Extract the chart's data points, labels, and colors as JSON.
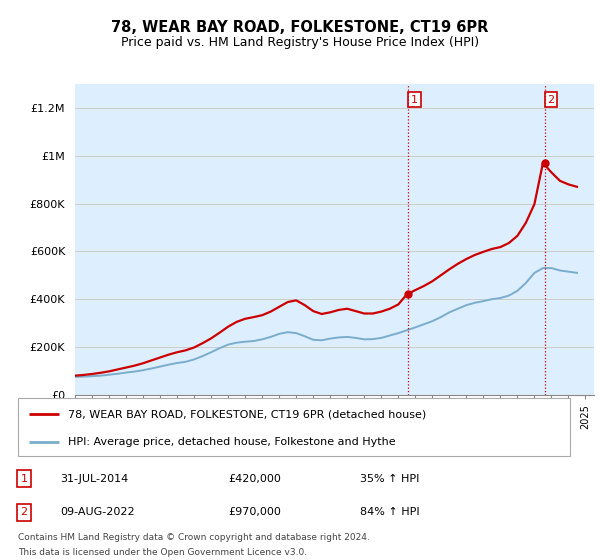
{
  "title": "78, WEAR BAY ROAD, FOLKESTONE, CT19 6PR",
  "subtitle": "Price paid vs. HM Land Registry's House Price Index (HPI)",
  "ylabel_ticks": [
    "£0",
    "£200K",
    "£400K",
    "£600K",
    "£800K",
    "£1M",
    "£1.2M"
  ],
  "ytick_values": [
    0,
    200000,
    400000,
    600000,
    800000,
    1000000,
    1200000
  ],
  "ylim": [
    0,
    1300000
  ],
  "xlim_start": 1995.0,
  "xlim_end": 2025.5,
  "red_line_color": "#cc0000",
  "blue_line_color": "#7aadcc",
  "vline_color": "#cc0000",
  "grid_color": "#cccccc",
  "bg_color": "#ddeeff",
  "legend1": "78, WEAR BAY ROAD, FOLKESTONE, CT19 6PR (detached house)",
  "legend2": "HPI: Average price, detached house, Folkestone and Hythe",
  "transaction1_date": "31-JUL-2014",
  "transaction1_price": "£420,000",
  "transaction1_hpi": "35% ↑ HPI",
  "transaction1_year": 2014.58,
  "transaction1_value": 420000,
  "transaction2_date": "09-AUG-2022",
  "transaction2_price": "£970,000",
  "transaction2_hpi": "84% ↑ HPI",
  "transaction2_year": 2022.61,
  "transaction2_value": 970000,
  "footnote1": "Contains HM Land Registry data © Crown copyright and database right 2024.",
  "footnote2": "This data is licensed under the Open Government Licence v3.0.",
  "hpi_years": [
    1995,
    1995.5,
    1996,
    1996.5,
    1997,
    1997.5,
    1998,
    1998.5,
    1999,
    1999.5,
    2000,
    2000.5,
    2001,
    2001.5,
    2002,
    2002.5,
    2003,
    2003.5,
    2004,
    2004.5,
    2005,
    2005.5,
    2006,
    2006.5,
    2007,
    2007.5,
    2008,
    2008.5,
    2009,
    2009.5,
    2010,
    2010.5,
    2011,
    2011.5,
    2012,
    2012.5,
    2013,
    2013.5,
    2014,
    2014.5,
    2015,
    2015.5,
    2016,
    2016.5,
    2017,
    2017.5,
    2018,
    2018.5,
    2019,
    2019.5,
    2020,
    2020.5,
    2021,
    2021.5,
    2022,
    2022.5,
    2023,
    2023.5,
    2024,
    2024.5
  ],
  "hpi_values": [
    75000,
    76000,
    78000,
    80000,
    84000,
    88000,
    93000,
    97000,
    103000,
    110000,
    118000,
    126000,
    133000,
    138000,
    148000,
    162000,
    178000,
    195000,
    210000,
    218000,
    222000,
    225000,
    232000,
    242000,
    255000,
    262000,
    258000,
    245000,
    230000,
    228000,
    235000,
    240000,
    242000,
    238000,
    232000,
    233000,
    238000,
    248000,
    258000,
    270000,
    282000,
    295000,
    308000,
    325000,
    345000,
    360000,
    375000,
    385000,
    392000,
    400000,
    405000,
    415000,
    435000,
    468000,
    510000,
    530000,
    530000,
    520000,
    515000,
    510000
  ],
  "red_years": [
    1995,
    1995.5,
    1996,
    1996.5,
    1997,
    1997.5,
    1998,
    1998.5,
    1999,
    1999.5,
    2000,
    2000.5,
    2001,
    2001.5,
    2002,
    2002.5,
    2003,
    2003.5,
    2004,
    2004.5,
    2005,
    2005.5,
    2006,
    2006.5,
    2007,
    2007.5,
    2008,
    2008.5,
    2009,
    2009.5,
    2010,
    2010.5,
    2011,
    2011.5,
    2012,
    2012.5,
    2013,
    2013.5,
    2014,
    2014.5,
    2015,
    2015.5,
    2016,
    2016.5,
    2017,
    2017.5,
    2018,
    2018.5,
    2019,
    2019.5,
    2020,
    2020.5,
    2021,
    2021.5,
    2022,
    2022.5,
    2023,
    2023.5,
    2024,
    2024.5
  ],
  "red_values": [
    80000,
    83000,
    87000,
    92000,
    98000,
    106000,
    114000,
    122000,
    132000,
    144000,
    156000,
    168000,
    178000,
    186000,
    198000,
    216000,
    236000,
    260000,
    285000,
    305000,
    318000,
    325000,
    333000,
    348000,
    368000,
    388000,
    395000,
    375000,
    350000,
    338000,
    345000,
    355000,
    360000,
    350000,
    340000,
    340000,
    348000,
    360000,
    378000,
    420000,
    438000,
    455000,
    475000,
    500000,
    525000,
    548000,
    568000,
    585000,
    598000,
    610000,
    618000,
    635000,
    665000,
    720000,
    798000,
    970000,
    930000,
    895000,
    880000,
    870000
  ]
}
